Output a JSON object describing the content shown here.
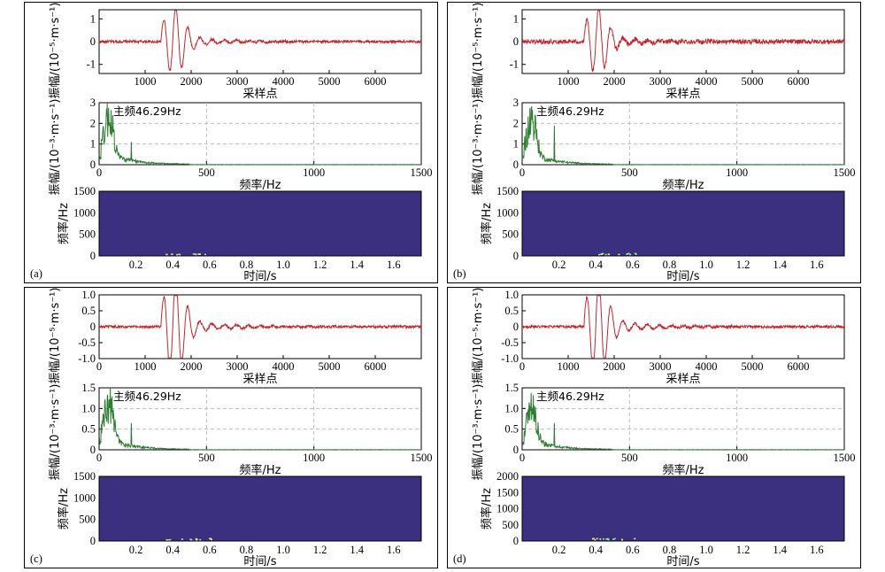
{
  "labels": {
    "wave_xlabel": "采样点",
    "spec_xlabel": "频率/Hz",
    "stft_xlabel": "时间/s",
    "stft_ylabel": "频率/Hz",
    "amp_ylabel": "振幅/(10⁻⁵·m·s⁻¹)",
    "spec_ylabel": "振幅/(10⁻³·m·s⁻¹)",
    "peak_note": "主频46.29Hz"
  },
  "colors": {
    "waveform": "#c0272d",
    "spectrum": "#2e7d32",
    "stft_bg": "#3b2f7f",
    "stft_hot": "#9be3a0",
    "grid": "#bdbdbd"
  },
  "chart_data": [
    {
      "panel_label": "(a)",
      "waveform": {
        "type": "line",
        "xlim": [
          0,
          7000
        ],
        "xticks": [
          1000,
          2000,
          3000,
          4000,
          5000,
          6000
        ],
        "ylim": [
          -1.4,
          1.4
        ],
        "yticks": [
          -1,
          0,
          1
        ],
        "ytick_labels": [
          "-1",
          "0",
          "1"
        ],
        "noise": 0.06
      },
      "spectrum": {
        "type": "line",
        "peak_hz": 46.29,
        "peak_amp": 2.5,
        "spike_hz": 150,
        "spike_amp": 1.1,
        "xlim": [
          0,
          1500
        ],
        "xticks": [
          0,
          500,
          1000,
          1500
        ],
        "ylim": [
          0,
          3
        ],
        "yticks": [
          0,
          1,
          2,
          3
        ],
        "ytick_labels": [
          "0",
          "1",
          "2",
          "3"
        ]
      },
      "stft": {
        "type": "heatmap",
        "xlim": [
          0,
          1.75
        ],
        "xticks": [
          0.2,
          0.4,
          0.6,
          0.8,
          1.0,
          1.2,
          1.4,
          1.6
        ],
        "xtick_labels": [
          "0.2",
          "0.4",
          "0.6",
          "0.8",
          "1.0",
          "1.2",
          "1.4",
          "1.6"
        ],
        "ylim": [
          0,
          1500
        ],
        "yticks": [
          0,
          500,
          1000,
          1500
        ]
      }
    },
    {
      "panel_label": "(b)",
      "waveform": {
        "type": "line",
        "xlim": [
          0,
          7000
        ],
        "xticks": [
          1000,
          2000,
          3000,
          4000,
          5000,
          6000
        ],
        "ylim": [
          -1.4,
          1.4
        ],
        "yticks": [
          -1,
          0,
          1
        ],
        "ytick_labels": [
          "-1",
          "0",
          "1"
        ],
        "noise": 0.1
      },
      "spectrum": {
        "type": "line",
        "peak_hz": 46.29,
        "peak_amp": 2.4,
        "spike_hz": 150,
        "spike_amp": 1.9,
        "xlim": [
          0,
          1500
        ],
        "xticks": [
          0,
          500,
          1000,
          1500
        ],
        "ylim": [
          0,
          3
        ],
        "yticks": [
          0,
          1,
          2,
          3
        ],
        "ytick_labels": [
          "0",
          "1",
          "2",
          "3"
        ]
      },
      "stft": {
        "type": "heatmap",
        "xlim": [
          0,
          1.75
        ],
        "xticks": [
          0.2,
          0.4,
          0.6,
          0.8,
          1.0,
          1.2,
          1.4,
          1.6
        ],
        "xtick_labels": [
          "0.2",
          "0.4",
          "0.6",
          "0.8",
          "1.0",
          "1.2",
          "1.4",
          "1.6"
        ],
        "ylim": [
          0,
          1500
        ],
        "yticks": [
          0,
          500,
          1000,
          1500
        ]
      }
    },
    {
      "panel_label": "(c)",
      "waveform": {
        "type": "line",
        "xlim": [
          0,
          7000
        ],
        "xticks": [
          0,
          1000,
          2000,
          3000,
          4000,
          5000,
          6000
        ],
        "ylim": [
          -1.0,
          1.0
        ],
        "yticks": [
          -1.0,
          -0.5,
          0,
          0.5,
          1.0
        ],
        "ytick_labels": [
          "-1.0",
          "-0.5",
          "0",
          "0.5",
          "1.0"
        ],
        "noise": 0.04
      },
      "spectrum": {
        "type": "line",
        "peak_hz": 46.29,
        "peak_amp": 1.2,
        "spike_hz": 150,
        "spike_amp": 0.65,
        "xlim": [
          0,
          1500
        ],
        "xticks": [
          0,
          500,
          1000,
          1500
        ],
        "ylim": [
          0,
          1.5
        ],
        "yticks": [
          0,
          0.5,
          1.0,
          1.5
        ],
        "ytick_labels": [
          "0",
          "0.5",
          "1.0",
          "1.5"
        ]
      },
      "stft": {
        "type": "heatmap",
        "xlim": [
          0,
          1.75
        ],
        "xticks": [
          0.2,
          0.4,
          0.6,
          0.8,
          1.0,
          1.2,
          1.4,
          1.6
        ],
        "xtick_labels": [
          "0.2",
          "0.4",
          "0.6",
          "0.8",
          "1.0",
          "1.2",
          "1.4",
          "1.6"
        ],
        "ylim": [
          0,
          1500
        ],
        "yticks": [
          0,
          500,
          1000,
          1500
        ]
      }
    },
    {
      "panel_label": "(d)",
      "waveform": {
        "type": "line",
        "xlim": [
          0,
          7000
        ],
        "xticks": [
          0,
          1000,
          2000,
          3000,
          4000,
          5000,
          6000
        ],
        "ylim": [
          -1.0,
          1.0
        ],
        "yticks": [
          -1.0,
          -0.5,
          0,
          0.5,
          1.0
        ],
        "ytick_labels": [
          "-1.0",
          "-0.5",
          "0",
          "0.5",
          "1.0"
        ],
        "noise": 0.04
      },
      "spectrum": {
        "type": "line",
        "peak_hz": 46.29,
        "peak_amp": 1.15,
        "spike_hz": 150,
        "spike_amp": 0.65,
        "xlim": [
          0,
          1500
        ],
        "xticks": [
          0,
          500,
          1000,
          1500
        ],
        "ylim": [
          0,
          1.5
        ],
        "yticks": [
          0,
          0.5,
          1.0,
          1.5
        ],
        "ytick_labels": [
          "0",
          "0.5",
          "1.0",
          "1.5"
        ]
      },
      "stft": {
        "type": "heatmap",
        "xlim": [
          0,
          1.75
        ],
        "xticks": [
          0.2,
          0.4,
          0.6,
          0.8,
          1.0,
          1.2,
          1.4,
          1.6
        ],
        "xtick_labels": [
          "0.2",
          "0.4",
          "0.6",
          "0.8",
          "1.0",
          "1.2",
          "1.4",
          "1.6"
        ],
        "ylim": [
          0,
          2000
        ],
        "yticks": [
          0,
          500,
          1000,
          1500,
          2000
        ]
      }
    }
  ]
}
